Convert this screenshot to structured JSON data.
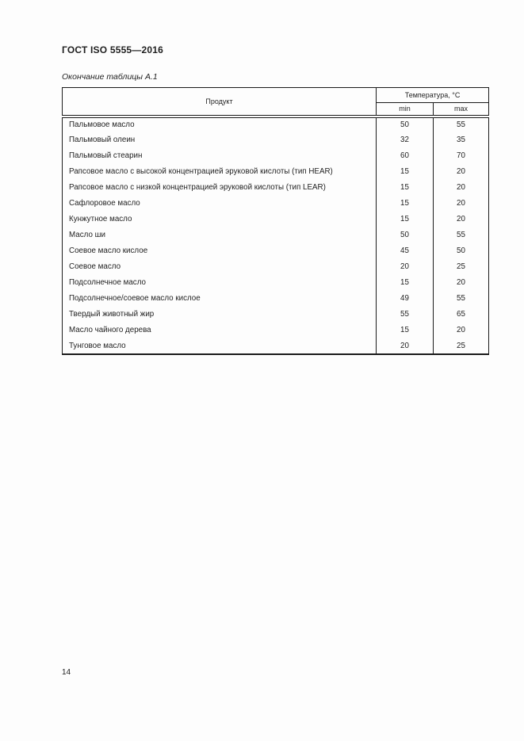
{
  "page": {
    "header_title": "ГОСТ ISO 5555—2016",
    "table_caption": "Окончание таблицы А.1",
    "page_number": "14"
  },
  "table": {
    "columns": {
      "product": "Продукт",
      "temperature_group": "Температура, °С",
      "min": "min",
      "max": "max"
    },
    "rows": [
      {
        "product": "Пальмовое масло",
        "min": "50",
        "max": "55"
      },
      {
        "product": "Пальмовый олеин",
        "min": "32",
        "max": "35"
      },
      {
        "product": "Пальмовый стеарин",
        "min": "60",
        "max": "70"
      },
      {
        "product": "Рапсовое масло с высокой концентрацией эруковой кислоты (тип HEAR)",
        "min": "15",
        "max": "20"
      },
      {
        "product": "Рапсовое масло с низкой концентрацией эруковой кислоты (тип LEAR)",
        "min": "15",
        "max": "20"
      },
      {
        "product": "Сафлоровое масло",
        "min": "15",
        "max": "20"
      },
      {
        "product": "Кунжутное масло",
        "min": "15",
        "max": "20"
      },
      {
        "product": "Масло ши",
        "min": "50",
        "max": "55"
      },
      {
        "product": "Соевое масло кислое",
        "min": "45",
        "max": "50"
      },
      {
        "product": "Соевое масло",
        "min": "20",
        "max": "25"
      },
      {
        "product": "Подсолнечное масло",
        "min": "15",
        "max": "20"
      },
      {
        "product": "Подсолнечное/соевое масло кислое",
        "min": "49",
        "max": "55"
      },
      {
        "product": "Твердый животный жир",
        "min": "55",
        "max": "65"
      },
      {
        "product": "Масло чайного дерева",
        "min": "15",
        "max": "20"
      },
      {
        "product": "Тунговое масло",
        "min": "20",
        "max": "25"
      }
    ]
  },
  "colors": {
    "background": "#fdfdfd",
    "text": "#1f1f1f",
    "border": "#1a1a1a"
  }
}
